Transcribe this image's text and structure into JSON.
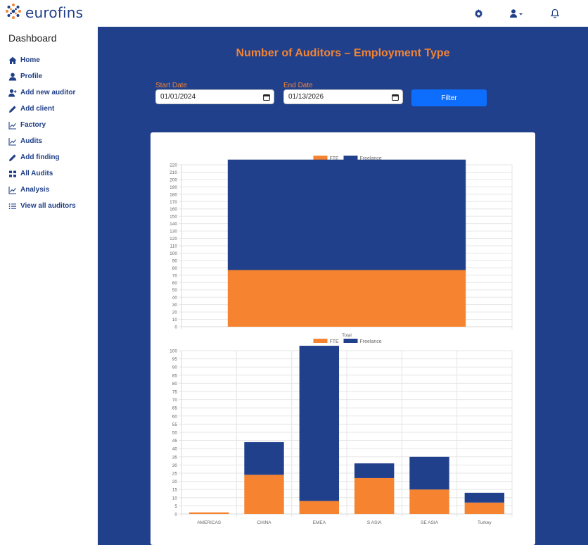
{
  "header": {
    "logo_text": "eurofins",
    "icons": [
      "gear-icon",
      "user-icon",
      "bell-icon"
    ]
  },
  "sidebar": {
    "title": "Dashboard",
    "items": [
      {
        "label": "Home",
        "icon": "home-icon"
      },
      {
        "label": "Profile",
        "icon": "user-icon"
      },
      {
        "label": "Add new auditor",
        "icon": "user-plus-icon"
      },
      {
        "label": "Add client",
        "icon": "pencil-icon"
      },
      {
        "label": "Factory",
        "icon": "line-chart-icon"
      },
      {
        "label": "Audits",
        "icon": "line-chart-icon"
      },
      {
        "label": "Add finding",
        "icon": "pencil-icon"
      },
      {
        "label": "All Audits",
        "icon": "grid-icon"
      },
      {
        "label": "Analysis",
        "icon": "line-chart-icon"
      },
      {
        "label": "View all auditors",
        "icon": "list-icon"
      }
    ]
  },
  "main": {
    "title": "Number of Auditors – Employment Type",
    "filters": {
      "start_label": "Start Date",
      "start_value": "01/01/2024",
      "end_label": "End Date",
      "end_value": "01/13/2026",
      "button_label": "Filter"
    }
  },
  "colors": {
    "accent": "#f28433",
    "brand": "#21408c",
    "fte": "#f5832f",
    "freelance": "#21408c",
    "button": "#0d6efd"
  },
  "chart_data": [
    {
      "type": "bar",
      "stacked": true,
      "categories": [
        "Total"
      ],
      "series": [
        {
          "name": "FTE",
          "values": [
            77
          ]
        },
        {
          "name": "Freelance",
          "values": [
            150
          ]
        }
      ],
      "ylim": [
        0,
        220
      ],
      "ytick_step": 10,
      "legend": "top",
      "grid": true
    },
    {
      "type": "bar",
      "stacked": true,
      "categories": [
        "AMERICAS",
        "CHINA",
        "EMEA",
        "S ASIA",
        "SE ASIA",
        "Turkey"
      ],
      "series": [
        {
          "name": "FTE",
          "values": [
            1,
            24,
            8,
            22,
            15,
            7
          ]
        },
        {
          "name": "Freelance",
          "values": [
            0,
            20,
            95,
            9,
            20,
            6
          ]
        }
      ],
      "ylim": [
        0,
        100
      ],
      "ytick_step": 5,
      "legend": "top",
      "grid": true
    }
  ]
}
